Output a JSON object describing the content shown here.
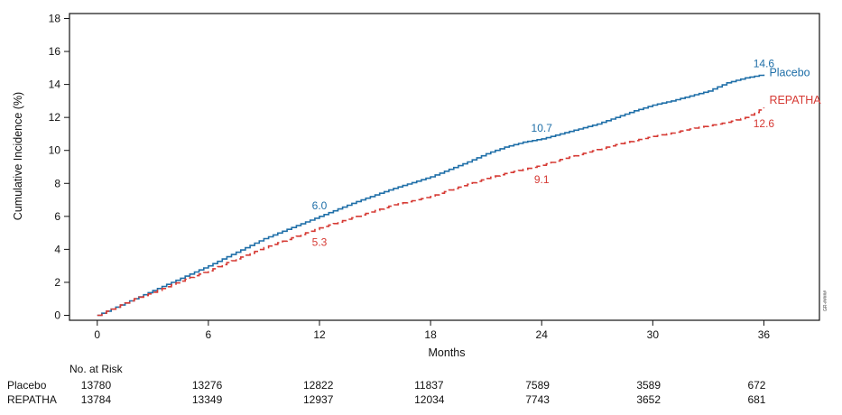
{
  "chart_data": {
    "type": "line",
    "xlabel": "Months",
    "ylabel": "Cumulative Incidence (%)",
    "xlim": [
      -1.5,
      39
    ],
    "ylim": [
      -0.3,
      18.3
    ],
    "xticks": [
      0,
      6,
      12,
      18,
      24,
      30,
      36
    ],
    "yticks": [
      0,
      2,
      4,
      6,
      8,
      10,
      12,
      14,
      16,
      18
    ],
    "grid": false,
    "side_code": "GR-#####",
    "series": [
      {
        "name": "Placebo",
        "color": "#1f6fa8",
        "line_style": "solid",
        "x": [
          0,
          1,
          2,
          3,
          4,
          5,
          6,
          7,
          8,
          9,
          10,
          11,
          12,
          13,
          14,
          15,
          16,
          17,
          18,
          19,
          20,
          21,
          22,
          23,
          24,
          25,
          26,
          27,
          28,
          29,
          30,
          31,
          32,
          33,
          34,
          35,
          36
        ],
        "values": [
          0,
          0.5,
          1.0,
          1.5,
          2.0,
          2.5,
          3.0,
          3.55,
          4.1,
          4.65,
          5.1,
          5.55,
          6.0,
          6.45,
          6.9,
          7.3,
          7.7,
          8.05,
          8.4,
          8.85,
          9.3,
          9.8,
          10.2,
          10.5,
          10.7,
          11.0,
          11.3,
          11.6,
          12.0,
          12.4,
          12.75,
          13.0,
          13.3,
          13.6,
          14.1,
          14.4,
          14.6
        ],
        "labels": [
          {
            "x": 12,
            "text": "6.0"
          },
          {
            "x": 24,
            "text": "10.7"
          },
          {
            "x": 36,
            "text": "14.6"
          }
        ]
      },
      {
        "name": "REPATHA",
        "color": "#d63a34",
        "line_style": "dashed",
        "x": [
          0,
          1,
          2,
          3,
          4,
          5,
          6,
          7,
          8,
          9,
          10,
          11,
          12,
          13,
          14,
          15,
          16,
          17,
          18,
          19,
          20,
          21,
          22,
          23,
          24,
          25,
          26,
          27,
          28,
          29,
          30,
          31,
          32,
          33,
          34,
          35,
          36
        ],
        "values": [
          0,
          0.5,
          1.0,
          1.4,
          1.85,
          2.3,
          2.7,
          3.2,
          3.65,
          4.1,
          4.5,
          4.9,
          5.3,
          5.65,
          6.0,
          6.35,
          6.7,
          6.95,
          7.2,
          7.6,
          7.95,
          8.3,
          8.6,
          8.85,
          9.1,
          9.45,
          9.75,
          10.05,
          10.35,
          10.6,
          10.85,
          11.05,
          11.3,
          11.5,
          11.7,
          12.0,
          12.6
        ],
        "labels": [
          {
            "x": 12,
            "text": "5.3"
          },
          {
            "x": 24,
            "text": "9.1"
          },
          {
            "x": 36,
            "text": "12.6"
          }
        ]
      }
    ]
  },
  "risk_table": {
    "header": "No. at Risk",
    "months": [
      0,
      6,
      12,
      18,
      24,
      30,
      36
    ],
    "rows": [
      {
        "label": "Placebo",
        "values": [
          "13780",
          "13276",
          "12822",
          "11837",
          "7589",
          "3589",
          "672"
        ]
      },
      {
        "label": "REPATHA",
        "values": [
          "13784",
          "13349",
          "12937",
          "12034",
          "7743",
          "3652",
          "681"
        ]
      }
    ]
  }
}
